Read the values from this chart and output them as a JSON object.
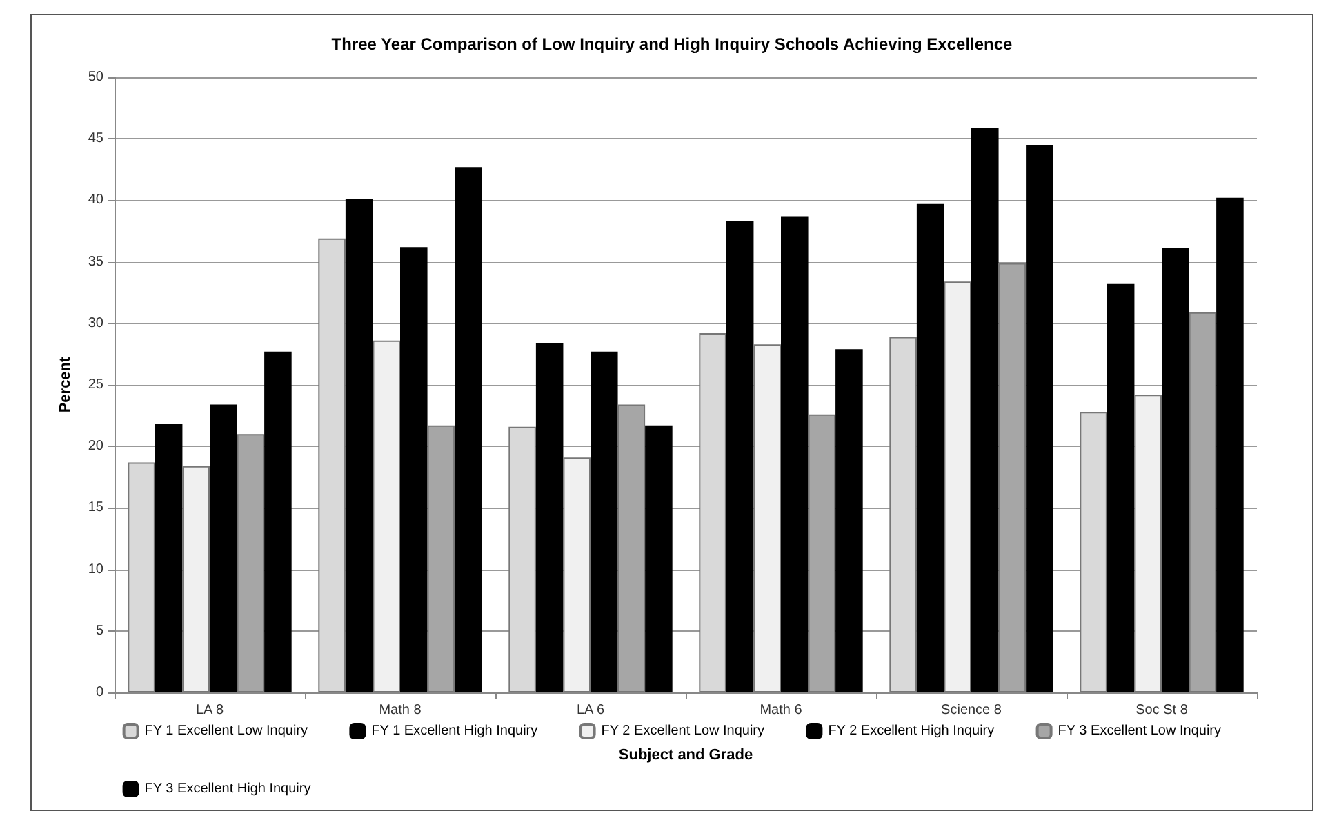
{
  "chart_data": {
    "type": "bar",
    "title": "Three Year Comparison of Low Inquiry and High Inquiry Schools Achieving Excellence",
    "xlabel": "Subject and Grade",
    "ylabel": "Percent",
    "categories": [
      "LA 8",
      "Math 8",
      "LA 6",
      "Math 6",
      "Science 8",
      "Soc St 8"
    ],
    "series": [
      {
        "name": "FY 1 Excellent Low Inquiry",
        "color": "#d9d9d9",
        "values": [
          18.7,
          36.9,
          21.6,
          29.2,
          28.9,
          22.8
        ]
      },
      {
        "name": "FY 1 Excellent High Inquiry",
        "color": "#000000",
        "values": [
          21.8,
          40.1,
          28.4,
          38.3,
          39.7,
          33.2
        ]
      },
      {
        "name": "FY 2 Excellent Low Inquiry",
        "color": "#f0f0f0",
        "values": [
          18.4,
          28.6,
          19.1,
          28.3,
          33.4,
          24.2
        ]
      },
      {
        "name": "FY 2 Excellent High Inquiry",
        "color": "#000000",
        "values": [
          23.4,
          36.2,
          27.7,
          38.7,
          45.9,
          36.1
        ]
      },
      {
        "name": "FY 3 Excellent Low Inquiry",
        "color": "#a6a6a6",
        "values": [
          21.0,
          21.7,
          23.4,
          22.6,
          34.9,
          30.9
        ]
      },
      {
        "name": "FY 3 Excellent High Inquiry",
        "color": "#000000",
        "values": [
          27.7,
          42.7,
          21.7,
          27.9,
          44.5,
          40.2
        ]
      }
    ],
    "ylim": [
      0,
      50
    ],
    "yticks": [
      0,
      5,
      10,
      15,
      20,
      25,
      30,
      35,
      40,
      45,
      50
    ],
    "grid": "y",
    "legend": "bottom"
  }
}
